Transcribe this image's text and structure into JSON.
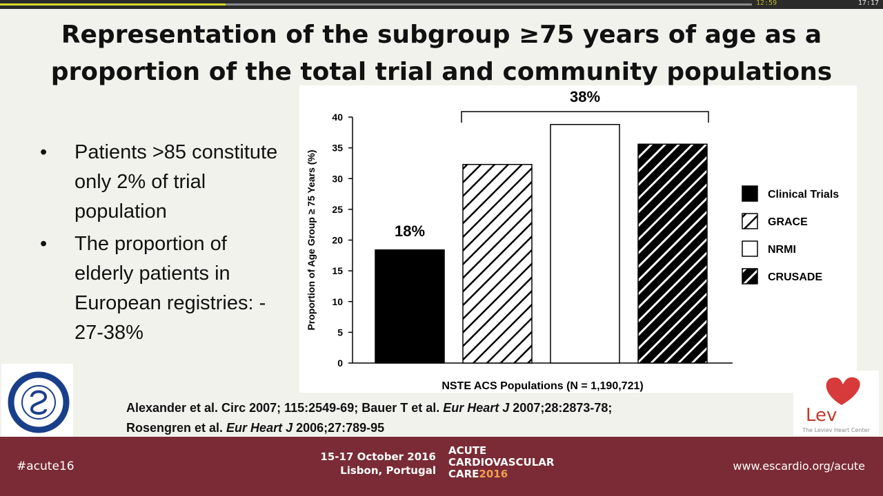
{
  "player": {
    "elapsed": "12:59",
    "total": "17:17",
    "progress_fraction": 0.3
  },
  "slide": {
    "title_line1": "Representation of the subgroup  ≥75 years of age as a",
    "title_line2": "proportion of the total trial and community populations",
    "bullets": [
      "Patients >85 constitute only 2% of trial population",
      "The proportion of elderly patients in European registries: - 27-38%"
    ],
    "references": {
      "line1_a": "Alexander et al. Circ 2007; 115:2549-69; Bauer T et al. ",
      "line1_b": "Eur Heart J",
      "line1_c": " 2007;28:2873-78;",
      "line2_a": "Rosengren et al. ",
      "line2_b": "Eur Heart J",
      "line2_c": " 2006;27:789-95"
    },
    "logo_right_text": "Lev",
    "logo_right_sub": "The Leviev Heart Center"
  },
  "footer": {
    "hashtag": "#acute16",
    "dates_line1": "15-17 October 2016",
    "dates_line2": "Lisbon, Portugal",
    "event_line1": "ACUTE",
    "event_line2": "CARDIOVASCULAR",
    "event_line3a": "CARE",
    "event_line3b": "2016",
    "url": "www.escardio.org/acute"
  },
  "colors": {
    "footer_bg": "#7a2b35",
    "accent": "#f0a050"
  },
  "chart_data": {
    "type": "bar",
    "xlabel": "NSTE ACS Populations (N = 1,190,721)",
    "ylabel": "Proportion of Age Group ≥ 75 Years (%)",
    "ylim": [
      0,
      40
    ],
    "yticks": [
      0,
      5,
      10,
      15,
      20,
      25,
      30,
      35,
      40
    ],
    "series": [
      {
        "name": "Clinical Trials",
        "value": 18.4,
        "pattern": "solid-black"
      },
      {
        "name": "GRACE",
        "value": 32.3,
        "pattern": "hatch-white"
      },
      {
        "name": "NRMI",
        "value": 38.8,
        "pattern": "white"
      },
      {
        "name": "CRUSADE",
        "value": 35.6,
        "pattern": "hatch-black"
      }
    ],
    "annotations": [
      {
        "text": "18%",
        "target": "Clinical Trials"
      },
      {
        "text": "38%",
        "target": "bracket GRACE–CRUSADE"
      }
    ],
    "legend": "right",
    "grid": false
  }
}
